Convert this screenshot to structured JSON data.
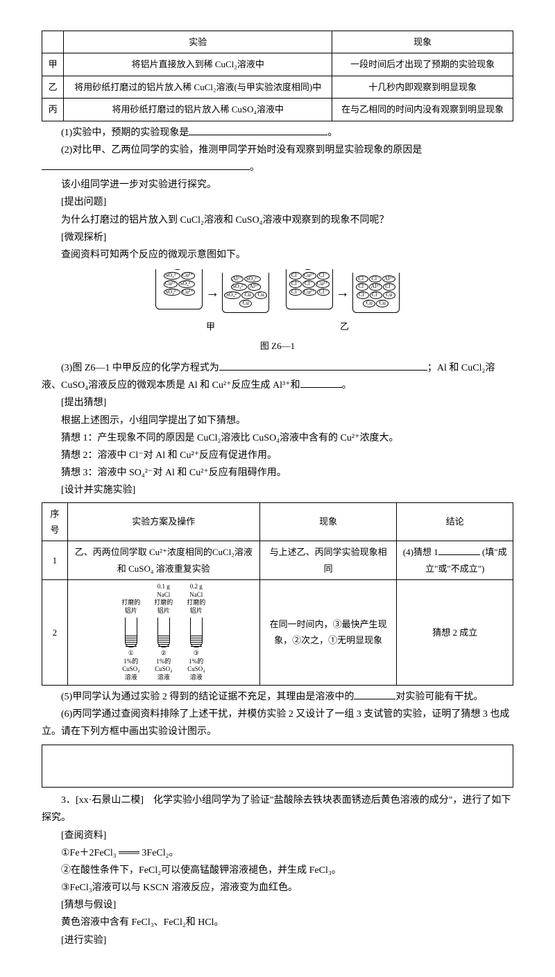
{
  "table1": {
    "headers": [
      "",
      "实验",
      "现象"
    ],
    "rows": [
      [
        "甲",
        "将铝片直接放入到稀 CuCl₂溶液中",
        "一段时间后才出现了预期的实验现象"
      ],
      [
        "乙",
        "将用砂纸打磨过的铝片放入稀 CuCl₂溶液(与甲实验浓度相同)中",
        "十几秒内即观察到明显现象"
      ],
      [
        "丙",
        "将用砂纸打磨过的铝片放入稀 CuSO₄溶液中",
        "在与乙相同的时间内没有观察到明显现象"
      ]
    ]
  },
  "q1": "(1)实验中，预期的实验现象是",
  "q2": "(2)对比甲、乙两位同学的实验，推测甲同学开始时没有观察到明显实验现象的原因是",
  "p1": "该小组同学进一步对实验进行探究。",
  "t1": "[提出问题]",
  "p2": "为什么打磨过的铝片放入到 CuCl₂溶液和 CuSO₄溶液中观察到的现象不同呢？",
  "t2": "[微观探析]",
  "p3": "查阅资料可知两个反应的微观示意图如下。",
  "diagram_labels": {
    "jia": "甲",
    "yi": "乙",
    "al": "Al",
    "arrow": "→"
  },
  "ions": {
    "so4": "SO₄²⁻",
    "cu2": "Cu²⁺",
    "al3": "Al³⁺",
    "cu": "Cu",
    "cl": "Cl⁻"
  },
  "fig_caption": "图 Z6—1",
  "q3a": "(3)图 Z6—1 中甲反应的化学方程式为",
  "q3b": "；Al 和 CuCl₂溶液、CuSO₄溶液反应的微观本质是 Al 和 Cu²⁺反应生成 Al³⁺和",
  "q3c": "。",
  "t3": "[提出猜想]",
  "p4": "根据上述图示，小组同学提出了如下猜想。",
  "g1": "猜想 1：产生现象不同的原因是 CuCl₂溶液比 CuSO₄溶液中含有的 Cu²⁺浓度大。",
  "g2": "猜想 2：溶液中 Cl⁻对 Al 和 Cu²⁺反应有促进作用。",
  "g3": "猜想 3：溶液中 SO₄²⁻对 Al 和 Cu²⁺反应有阻碍作用。",
  "t4": "[设计并实施实验]",
  "table2": {
    "headers": [
      "序号",
      "实验方案及操作",
      "现象",
      "结论"
    ],
    "row1": [
      "1",
      "乙、丙两位同学取 Cu²⁺浓度相同的CuCl₂溶液和 CuSO₄ 溶液重复实验",
      "与上述乙、丙同学实验现象相同",
      "(4)猜想 1",
      "(填\"成立\"或\"不成立\")"
    ],
    "row2": [
      "2",
      "",
      "在同一时间内，③最快产生现象，②次之，①无明显现象",
      "猜想 2 成立"
    ]
  },
  "tubes": {
    "top1": "打磨的\n铝片",
    "top2": "0.1 g\nNaCl",
    "top3": "0.2 g\nNaCl",
    "top2b": "打磨的\n铝片",
    "top3b": "打磨的\n铝片",
    "n1": "①",
    "n2": "②",
    "n3": "③",
    "bottom": "1%的\nCuSO₄\n溶液"
  },
  "q5a": "(5)甲同学认为通过实验 2 得到的结论证据不充足，其理由是溶液中的",
  "q5b": "对实验可能有干扰。",
  "q6": "(6)丙同学通过查阅资料排除了上述干扰，并模仿实验 2 又设计了一组 3 支试管的实验，证明了猜想 3 也成立。请在下列方框中画出实验设计图示。",
  "p5a": "3．[xx·石景山二模]　化学实验小组同学为了验证\"盐酸除去铁块表面锈迹后黄色溶液的成分\"，进行了如下探究。",
  "t5": "[查阅资料]",
  "r1": "①Fe＋2FeCl₃ ═══ 3FeCl₂。",
  "r2": "②在酸性条件下，FeCl₂可以使高锰酸钾溶液褪色，并生成 FeCl₃。",
  "r3": "③FeCl₃溶液可以与 KSCN 溶液反应，溶液变为血红色。",
  "t6": "[猜想与假设]",
  "p6": "黄色溶液中含有 FeCl₃、FeCl₂和 HCl。",
  "t7": "[进行实验]"
}
